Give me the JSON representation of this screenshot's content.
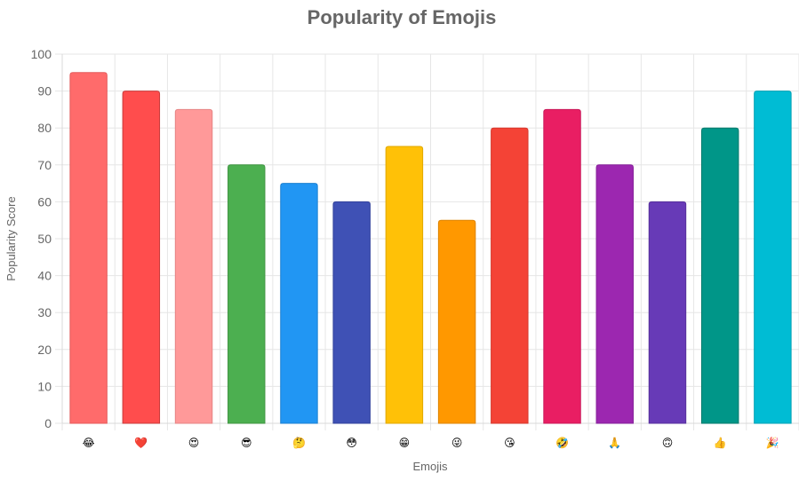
{
  "chart_data": {
    "type": "bar",
    "title": "Popularity of Emojis",
    "xlabel": "Emojis",
    "ylabel": "Popularity Score",
    "ylim": [
      0,
      100
    ],
    "yticks": [
      0,
      10,
      20,
      30,
      40,
      50,
      60,
      70,
      80,
      90,
      100
    ],
    "grid": true,
    "legend": "none",
    "categories": [
      "😂",
      "❤️",
      "😍",
      "😎",
      "🤔",
      "😳",
      "😁",
      "😜",
      "😘",
      "🤣",
      "🙏",
      "🙃",
      "👍",
      "🎉"
    ],
    "values": [
      95,
      90,
      85,
      70,
      65,
      60,
      75,
      55,
      80,
      85,
      70,
      60,
      80,
      90
    ],
    "colors": [
      "#ff6b6b",
      "#ff4d4d",
      "#ff9999",
      "#4caf50",
      "#2196f3",
      "#3f51b5",
      "#ffc107",
      "#ff9800",
      "#f44336",
      "#e91e63",
      "#9c27b0",
      "#673ab7",
      "#009688",
      "#00bcd4"
    ],
    "border_colors": [
      "#e45b5b",
      "#c83c3c",
      "#e68585",
      "#3f9442",
      "#1d80d0",
      "#33439c",
      "#e0a800",
      "#dd8300",
      "#d5372c",
      "#c9185a",
      "#86219a",
      "#57309c",
      "#00796b",
      "#00a0b4"
    ]
  }
}
